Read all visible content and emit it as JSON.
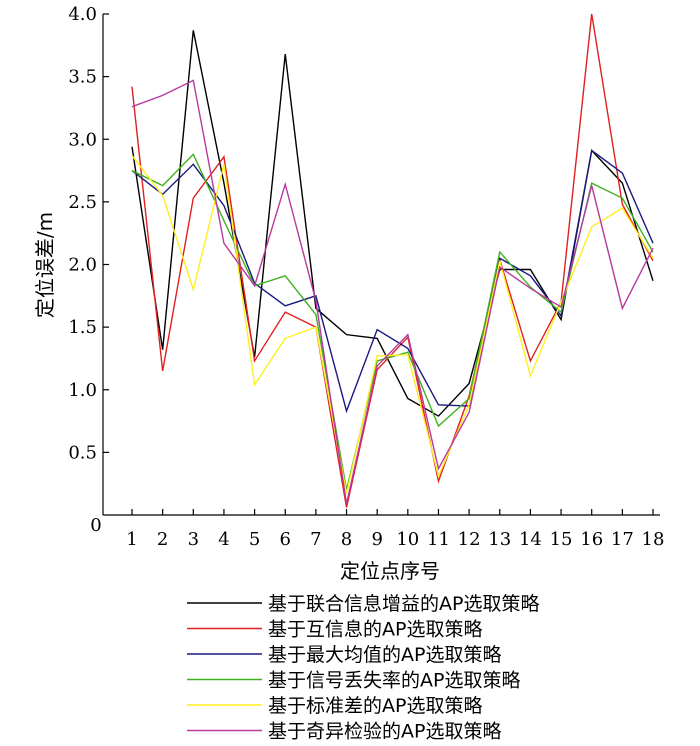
{
  "chart_data": {
    "type": "line",
    "xlabel": "定位点序号",
    "ylabel": "定位误差/m",
    "x": [
      1,
      2,
      3,
      4,
      5,
      6,
      7,
      8,
      9,
      10,
      11,
      12,
      13,
      14,
      15,
      16,
      17,
      18
    ],
    "xlim": [
      0.0,
      18.0
    ],
    "ylim": [
      0,
      4.0
    ],
    "yticks": [
      0.5,
      1.0,
      1.5,
      2.0,
      2.5,
      3.0,
      3.5,
      4.0
    ],
    "yticklabels": [
      "0.5",
      "1.0",
      "1.5",
      "2.0",
      "2.5",
      "3.0",
      "3.5",
      "4.0"
    ],
    "origin_label": "0",
    "grid": false,
    "legend_position": "bottom",
    "series": [
      {
        "name": "基于联合信息增益的AP选取策略",
        "color": "#000000",
        "values": [
          2.94,
          1.32,
          3.87,
          2.65,
          1.26,
          3.68,
          1.65,
          1.44,
          1.41,
          0.93,
          0.79,
          1.05,
          1.96,
          1.96,
          1.56,
          2.91,
          2.65,
          1.87
        ]
      },
      {
        "name": "基于互信息的AP选取策略",
        "color": "#e02020",
        "values": [
          3.42,
          1.15,
          2.53,
          2.86,
          1.23,
          1.62,
          1.5,
          0.06,
          1.16,
          1.42,
          0.27,
          0.95,
          2.04,
          1.23,
          1.7,
          4.0,
          2.48,
          2.03
        ]
      },
      {
        "name": "基于最大均值的AP选取策略",
        "color": "#1a1a80",
        "values": [
          2.75,
          2.56,
          2.8,
          2.47,
          1.85,
          1.67,
          1.75,
          0.83,
          1.48,
          1.33,
          0.88,
          0.87,
          2.05,
          1.91,
          1.59,
          2.91,
          2.73,
          2.17
        ]
      },
      {
        "name": "基于信号丢失率的AP选取策略",
        "color": "#40b020",
        "values": [
          2.75,
          2.63,
          2.88,
          2.35,
          1.83,
          1.91,
          1.6,
          0.2,
          1.23,
          1.3,
          0.71,
          0.93,
          2.1,
          1.82,
          1.62,
          2.65,
          2.53,
          2.1
        ]
      },
      {
        "name": "基于标准差的AP选取策略",
        "color": "#ffee20",
        "values": [
          2.87,
          2.55,
          1.8,
          2.8,
          1.04,
          1.41,
          1.5,
          0.17,
          1.27,
          1.28,
          0.31,
          0.88,
          2.03,
          1.11,
          1.7,
          2.3,
          2.45,
          2.05
        ]
      },
      {
        "name": "基于奇异检验的AP选取策略",
        "color": "#b83a9e",
        "values": [
          3.26,
          3.35,
          3.47,
          2.17,
          1.83,
          2.64,
          1.71,
          0.09,
          1.19,
          1.44,
          0.37,
          0.82,
          1.98,
          1.81,
          1.66,
          2.63,
          1.65,
          2.13
        ]
      }
    ]
  }
}
